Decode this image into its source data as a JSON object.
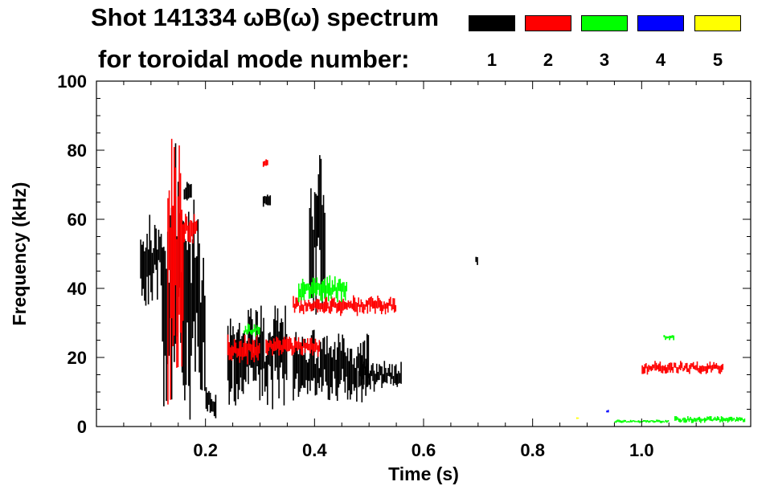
{
  "chart_data": {
    "type": "heatmap",
    "title": "Shot 141334 ωB(ω) spectrum",
    "subtitle": "for toroidal mode number:",
    "xlabel": "Time (s)",
    "ylabel": "Frequency (kHz)",
    "xlim": [
      0.0,
      1.2
    ],
    "ylim": [
      0,
      100
    ],
    "x_ticks": [
      {
        "value": 0.2,
        "label": "0.2"
      },
      {
        "value": 0.4,
        "label": "0.4"
      },
      {
        "value": 0.6,
        "label": "0.6"
      },
      {
        "value": 0.8,
        "label": "0.8"
      },
      {
        "value": 1.0,
        "label": "1.0"
      }
    ],
    "y_ticks": [
      {
        "value": 0,
        "label": "0"
      },
      {
        "value": 20,
        "label": "20"
      },
      {
        "value": 40,
        "label": "40"
      },
      {
        "value": 60,
        "label": "60"
      },
      {
        "value": 80,
        "label": "80"
      },
      {
        "value": 100,
        "label": "100"
      }
    ],
    "legend": {
      "placement": "top-right",
      "entries": [
        {
          "label": "1",
          "color": "#000000"
        },
        {
          "label": "2",
          "color": "#ff0000"
        },
        {
          "label": "3",
          "color": "#00ff00"
        },
        {
          "label": "4",
          "color": "#0000ff"
        },
        {
          "label": "5",
          "color": "#ffff00"
        }
      ]
    },
    "regions": [
      {
        "mode": 1,
        "t": [
          0.08,
          0.12
        ],
        "f": [
          35,
          62
        ]
      },
      {
        "mode": 1,
        "t": [
          0.12,
          0.18
        ],
        "f": [
          2,
          82
        ]
      },
      {
        "mode": 1,
        "t": [
          0.16,
          0.175
        ],
        "f": [
          64,
          72
        ]
      },
      {
        "mode": 1,
        "t": [
          0.18,
          0.2
        ],
        "f": [
          3,
          60
        ]
      },
      {
        "mode": 1,
        "t": [
          0.2,
          0.22
        ],
        "f": [
          2,
          12
        ]
      },
      {
        "mode": 1,
        "t": [
          0.24,
          0.35
        ],
        "f": [
          5,
          35
        ]
      },
      {
        "mode": 1,
        "t": [
          0.305,
          0.32
        ],
        "f": [
          63,
          68
        ]
      },
      {
        "mode": 1,
        "t": [
          0.36,
          0.5
        ],
        "f": [
          7,
          28
        ]
      },
      {
        "mode": 1,
        "t": [
          0.48,
          0.56
        ],
        "f": [
          10,
          19
        ]
      },
      {
        "mode": 1,
        "t": [
          0.39,
          0.42
        ],
        "f": [
          25,
          82
        ]
      },
      {
        "mode": 1,
        "t": [
          0.695,
          0.7
        ],
        "f": [
          45,
          50
        ]
      },
      {
        "mode": 2,
        "t": [
          0.13,
          0.16
        ],
        "f": [
          2,
          86
        ]
      },
      {
        "mode": 2,
        "t": [
          0.16,
          0.185
        ],
        "f": [
          53,
          62
        ]
      },
      {
        "mode": 2,
        "t": [
          0.24,
          0.3
        ],
        "f": [
          18,
          27
        ]
      },
      {
        "mode": 2,
        "t": [
          0.305,
          0.315
        ],
        "f": [
          75,
          78
        ]
      },
      {
        "mode": 2,
        "t": [
          0.36,
          0.55
        ],
        "f": [
          32,
          38
        ]
      },
      {
        "mode": 2,
        "t": [
          0.31,
          0.41
        ],
        "f": [
          20,
          26
        ]
      },
      {
        "mode": 2,
        "t": [
          1.0,
          1.15
        ],
        "f": [
          15,
          19
        ]
      },
      {
        "mode": 3,
        "t": [
          0.37,
          0.46
        ],
        "f": [
          36,
          44
        ]
      },
      {
        "mode": 3,
        "t": [
          0.27,
          0.3
        ],
        "f": [
          26,
          30
        ]
      },
      {
        "mode": 3,
        "t": [
          1.06,
          1.19
        ],
        "f": [
          1,
          3
        ]
      },
      {
        "mode": 3,
        "t": [
          0.95,
          1.05
        ],
        "f": [
          1,
          2
        ]
      },
      {
        "mode": 3,
        "t": [
          1.04,
          1.06
        ],
        "f": [
          25,
          27
        ]
      },
      {
        "mode": 4,
        "t": [
          0.935,
          0.94
        ],
        "f": [
          4,
          5
        ]
      },
      {
        "mode": 5,
        "t": [
          0.88,
          0.885
        ],
        "f": [
          2,
          3
        ]
      }
    ]
  }
}
